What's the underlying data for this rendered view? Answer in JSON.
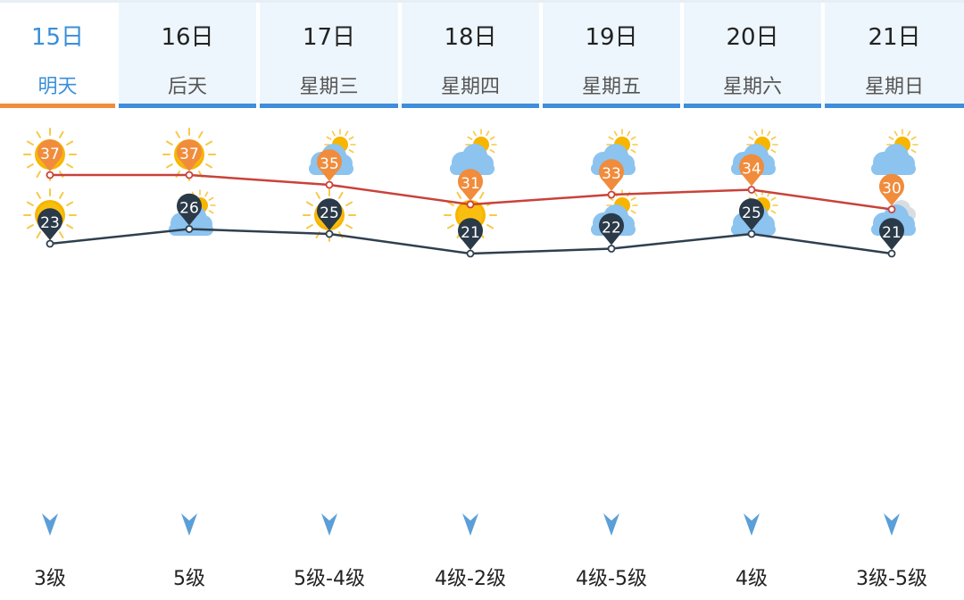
{
  "days": [
    {
      "date": "15日",
      "name": "明天",
      "day_icon": "sun-icon",
      "night_icon": "sun-icon",
      "high": 37,
      "low": 23,
      "wind": "3级",
      "active": true
    },
    {
      "date": "16日",
      "name": "后天",
      "day_icon": "sun-icon",
      "night_icon": "partly-cloudy-icon",
      "high": 37,
      "low": 26,
      "wind": "5级",
      "active": false
    },
    {
      "date": "17日",
      "name": "星期三",
      "day_icon": "partly-cloudy-icon",
      "night_icon": "sun-icon",
      "high": 35,
      "low": 25,
      "wind": "5级-4级",
      "active": false
    },
    {
      "date": "18日",
      "name": "星期四",
      "day_icon": "partly-cloudy-icon",
      "night_icon": "sun-icon",
      "high": 31,
      "low": 21,
      "wind": "4级-2级",
      "active": false
    },
    {
      "date": "19日",
      "name": "星期五",
      "day_icon": "partly-cloudy-icon",
      "night_icon": "partly-cloudy-icon",
      "high": 33,
      "low": 22,
      "wind": "4级-5级",
      "active": false
    },
    {
      "date": "20日",
      "name": "星期六",
      "day_icon": "partly-cloudy-icon",
      "night_icon": "partly-cloudy-icon",
      "high": 34,
      "low": 25,
      "wind": "4级",
      "active": false
    },
    {
      "date": "21日",
      "name": "星期日",
      "day_icon": "partly-cloudy-icon",
      "night_icon": "cloudy-icon",
      "high": 30,
      "low": 21,
      "wind": "3级-5级",
      "active": false
    }
  ],
  "colors": {
    "accent_active": "#f08c3c",
    "tab_bar": "#3f8ddb",
    "high_line": "#c9423a",
    "low_line": "#2f3f4f",
    "high_pin": "#f08c3c",
    "low_pin": "#2b3a48",
    "wind_arrow": "#5b9fd8"
  }
}
